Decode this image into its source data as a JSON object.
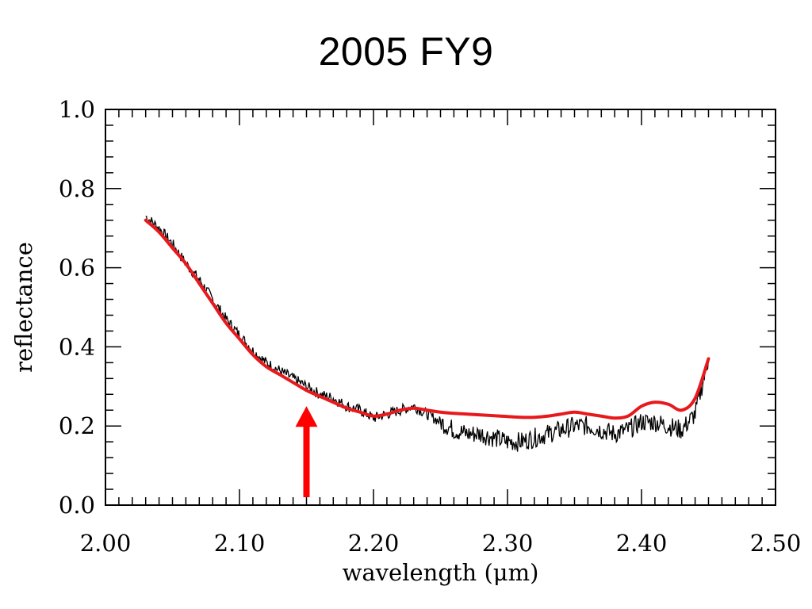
{
  "title": "2005 FY9",
  "chart_data": {
    "type": "line",
    "title": "2005 FY9",
    "xlabel": "wavelength (μm)",
    "ylabel": "reflectance",
    "xlim": [
      2.0,
      2.5
    ],
    "ylim": [
      0.0,
      1.0
    ],
    "x_ticks": [
      "2.00",
      "2.10",
      "2.20",
      "2.30",
      "2.40",
      "2.50"
    ],
    "y_ticks": [
      "0.0",
      "0.2",
      "0.4",
      "0.6",
      "0.8",
      "1.0"
    ],
    "grid": false,
    "series": [
      {
        "style": "noisy-black",
        "color": "#000000",
        "x": [
          2.03,
          2.04,
          2.05,
          2.06,
          2.07,
          2.08,
          2.09,
          2.1,
          2.11,
          2.12,
          2.13,
          2.14,
          2.15,
          2.16,
          2.17,
          2.18,
          2.19,
          2.2,
          2.21,
          2.22,
          2.23,
          2.24,
          2.25,
          2.26,
          2.27,
          2.28,
          2.29,
          2.3,
          2.31,
          2.32,
          2.33,
          2.34,
          2.35,
          2.36,
          2.37,
          2.38,
          2.39,
          2.4,
          2.41,
          2.42,
          2.43,
          2.44,
          2.45
        ],
        "y": [
          0.73,
          0.7,
          0.66,
          0.61,
          0.57,
          0.52,
          0.47,
          0.43,
          0.39,
          0.36,
          0.34,
          0.32,
          0.3,
          0.28,
          0.27,
          0.25,
          0.24,
          0.22,
          0.23,
          0.24,
          0.25,
          0.23,
          0.21,
          0.19,
          0.18,
          0.18,
          0.17,
          0.16,
          0.16,
          0.17,
          0.18,
          0.19,
          0.2,
          0.2,
          0.19,
          0.18,
          0.19,
          0.21,
          0.21,
          0.2,
          0.19,
          0.23,
          0.37
        ]
      },
      {
        "style": "smooth-red",
        "color": "#e8191c",
        "x": [
          2.03,
          2.04,
          2.05,
          2.06,
          2.07,
          2.08,
          2.09,
          2.1,
          2.11,
          2.12,
          2.13,
          2.14,
          2.15,
          2.16,
          2.17,
          2.18,
          2.19,
          2.2,
          2.21,
          2.22,
          2.23,
          2.24,
          2.25,
          2.26,
          2.27,
          2.28,
          2.29,
          2.3,
          2.31,
          2.32,
          2.33,
          2.34,
          2.35,
          2.36,
          2.37,
          2.38,
          2.39,
          2.4,
          2.41,
          2.42,
          2.43,
          2.44,
          2.45
        ],
        "y": [
          0.72,
          0.69,
          0.65,
          0.61,
          0.56,
          0.51,
          0.46,
          0.42,
          0.38,
          0.35,
          0.33,
          0.31,
          0.29,
          0.275,
          0.26,
          0.245,
          0.235,
          0.225,
          0.23,
          0.24,
          0.245,
          0.24,
          0.235,
          0.232,
          0.23,
          0.228,
          0.226,
          0.224,
          0.222,
          0.222,
          0.225,
          0.23,
          0.235,
          0.23,
          0.225,
          0.22,
          0.225,
          0.25,
          0.26,
          0.255,
          0.24,
          0.27,
          0.37
        ]
      }
    ],
    "annotations": [
      {
        "type": "arrow",
        "color": "#ff0000",
        "x": 2.15,
        "y_from": 0.02,
        "y_to": 0.25
      }
    ]
  }
}
